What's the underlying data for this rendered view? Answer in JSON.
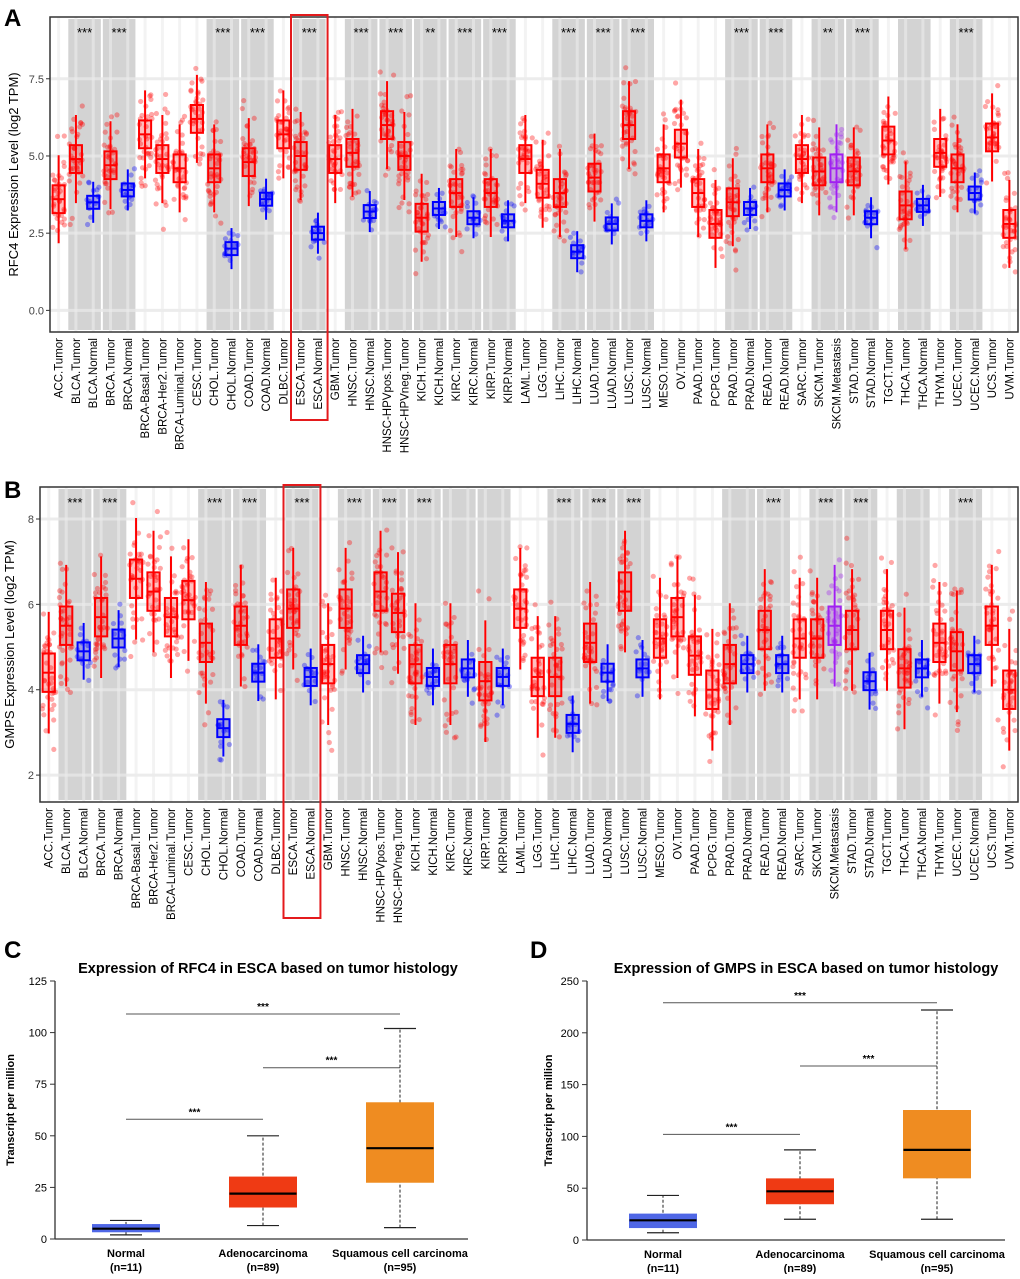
{
  "panel_letters": {
    "a": "A",
    "b": "B",
    "c": "C",
    "d": "D"
  },
  "chart_data": [
    {
      "id": "A",
      "type": "box",
      "ylabel": "RFC4 Expression Level (log2 TPM)",
      "yticks": [
        "0.0",
        "2.5",
        "5.0",
        "7.5"
      ],
      "ytick_values": [
        0,
        2.5,
        5,
        7.5
      ],
      "ylim": [
        -0.7,
        9.5
      ],
      "highlight": "ESCA",
      "categories": [
        "ACC.Tumor",
        "BLCA.Tumor",
        "BLCA.Normal",
        "BRCA.Tumor",
        "BRCA.Normal",
        "BRCA-Basal.Tumor",
        "BRCA-Her2.Tumor",
        "BRCA-Luminal.Tumor",
        "CESC.Tumor",
        "CHOL.Tumor",
        "CHOL.Normal",
        "COAD.Tumor",
        "COAD.Normal",
        "DLBC.Tumor",
        "ESCA.Tumor",
        "ESCA.Normal",
        "GBM.Tumor",
        "HNSC.Tumor",
        "HNSC.Normal",
        "HNSC-HPVpos.Tumor",
        "HNSC-HPVneg.Tumor",
        "KICH.Tumor",
        "KICH.Normal",
        "KIRC.Tumor",
        "KIRC.Normal",
        "KIRP.Tumor",
        "KIRP.Normal",
        "LAML.Tumor",
        "LGG.Tumor",
        "LIHC.Tumor",
        "LIHC.Normal",
        "LUAD.Tumor",
        "LUAD.Normal",
        "LUSC.Tumor",
        "LUSC.Normal",
        "MESO.Tumor",
        "OV.Tumor",
        "PAAD.Tumor",
        "PCPG.Tumor",
        "PRAD.Tumor",
        "PRAD.Normal",
        "READ.Tumor",
        "READ.Normal",
        "SARC.Tumor",
        "SKCM.Tumor",
        "SKCM.Metastasis",
        "STAD.Tumor",
        "STAD.Normal",
        "TGCT.Tumor",
        "THCA.Tumor",
        "THCA.Normal",
        "THYM.Tumor",
        "UCEC.Tumor",
        "UCEC.Normal",
        "UCS.Tumor",
        "UVM.Tumor"
      ],
      "medians": [
        3.6,
        4.9,
        3.5,
        4.7,
        3.9,
        5.7,
        4.9,
        4.6,
        6.2,
        4.6,
        2.0,
        4.8,
        3.6,
        5.7,
        5.0,
        2.5,
        4.9,
        5.1,
        3.2,
        6.0,
        5.0,
        3.0,
        3.3,
        3.8,
        3.0,
        3.8,
        2.9,
        4.9,
        4.1,
        3.8,
        1.9,
        4.3,
        2.8,
        6.0,
        2.9,
        4.6,
        5.4,
        3.8,
        2.8,
        3.5,
        3.3,
        4.6,
        3.9,
        4.9,
        4.5,
        4.6,
        4.5,
        3.0,
        5.5,
        3.4,
        3.4,
        5.1,
        4.6,
        3.8,
        5.6,
        2.8
      ],
      "significance_bands": [
        {
          "index": 1,
          "stars": "***"
        },
        {
          "index": 3,
          "stars": "***"
        },
        {
          "index": 9,
          "stars": "***"
        },
        {
          "index": 11,
          "stars": "***"
        },
        {
          "index": 14,
          "stars": "***"
        },
        {
          "index": 17,
          "stars": "***"
        },
        {
          "index": 19,
          "stars": "***"
        },
        {
          "index": 21,
          "stars": "**"
        },
        {
          "index": 23,
          "stars": "***"
        },
        {
          "index": 25,
          "stars": "***"
        },
        {
          "index": 29,
          "stars": "***"
        },
        {
          "index": 31,
          "stars": "***"
        },
        {
          "index": 33,
          "stars": "***"
        },
        {
          "index": 39,
          "stars": "***"
        },
        {
          "index": 41,
          "stars": "***"
        },
        {
          "index": 44,
          "stars": "**"
        },
        {
          "index": 46,
          "stars": "***"
        },
        {
          "index": 49,
          "stars": ""
        },
        {
          "index": 52,
          "stars": "***"
        }
      ]
    },
    {
      "id": "B",
      "type": "box",
      "ylabel": "GMPS Expression Level (log2 TPM)",
      "yticks": [
        "2",
        "4",
        "6",
        "8"
      ],
      "ytick_values": [
        2,
        4,
        6,
        8
      ],
      "ylim": [
        1.37,
        8.75
      ],
      "highlight": "ESCA",
      "categories": [
        "ACC.Tumor",
        "BLCA.Tumor",
        "BLCA.Normal",
        "BRCA.Tumor",
        "BRCA.Normal",
        "BRCA-Basal.Tumor",
        "BRCA-Her2.Tumor",
        "BRCA-Luminal.Tumor",
        "CESC.Tumor",
        "CHOL.Tumor",
        "CHOL.Normal",
        "COAD.Tumor",
        "COAD.Normal",
        "DLBC.Tumor",
        "ESCA.Tumor",
        "ESCA.Normal",
        "GBM.Tumor",
        "HNSC.Tumor",
        "HNSC.Normal",
        "HNSC-HPVpos.Tumor",
        "HNSC-HPVneg.Tumor",
        "KICH.Tumor",
        "KICH.Normal",
        "KIRC.Tumor",
        "KIRC.Normal",
        "KIRP.Tumor",
        "KIRP.Normal",
        "LAML.Tumor",
        "LGG.Tumor",
        "LIHC.Tumor",
        "LIHC.Normal",
        "LUAD.Tumor",
        "LUAD.Normal",
        "LUSC.Tumor",
        "LUSC.Normal",
        "MESO.Tumor",
        "OV.Tumor",
        "PAAD.Tumor",
        "PCPG.Tumor",
        "PRAD.Tumor",
        "PRAD.Normal",
        "READ.Tumor",
        "READ.Normal",
        "SARC.Tumor",
        "SKCM.Tumor",
        "SKCM.Metastasis",
        "STAD.Tumor",
        "STAD.Normal",
        "TGCT.Tumor",
        "THCA.Tumor",
        "THCA.Normal",
        "THYM.Tumor",
        "UCEC.Tumor",
        "UCEC.Normal",
        "UCS.Tumor",
        "UVM.Tumor"
      ],
      "medians": [
        4.4,
        5.5,
        4.9,
        5.7,
        5.2,
        6.6,
        6.3,
        5.7,
        6.1,
        5.1,
        3.1,
        5.5,
        4.4,
        5.2,
        5.9,
        4.3,
        4.6,
        5.9,
        4.6,
        6.3,
        5.8,
        4.6,
        4.3,
        4.6,
        4.5,
        4.2,
        4.3,
        5.9,
        4.3,
        4.3,
        3.2,
        5.1,
        4.4,
        6.3,
        4.5,
        5.2,
        5.7,
        4.8,
        4.0,
        4.6,
        4.6,
        5.4,
        4.6,
        5.2,
        5.2,
        5.5,
        5.4,
        4.2,
        5.4,
        4.5,
        4.5,
        5.1,
        4.9,
        4.6,
        5.5,
        4.0
      ],
      "significance_bands": [
        {
          "index": 1,
          "stars": "***"
        },
        {
          "index": 3,
          "stars": "***"
        },
        {
          "index": 9,
          "stars": "***"
        },
        {
          "index": 11,
          "stars": "***"
        },
        {
          "index": 14,
          "stars": "***"
        },
        {
          "index": 17,
          "stars": "***"
        },
        {
          "index": 19,
          "stars": "***"
        },
        {
          "index": 21,
          "stars": "***"
        },
        {
          "index": 23,
          "stars": ""
        },
        {
          "index": 25,
          "stars": ""
        },
        {
          "index": 29,
          "stars": "***"
        },
        {
          "index": 31,
          "stars": "***"
        },
        {
          "index": 33,
          "stars": "***"
        },
        {
          "index": 39,
          "stars": ""
        },
        {
          "index": 41,
          "stars": "***"
        },
        {
          "index": 44,
          "stars": "***"
        },
        {
          "index": 46,
          "stars": "***"
        },
        {
          "index": 49,
          "stars": ""
        },
        {
          "index": 52,
          "stars": "***"
        }
      ]
    },
    {
      "id": "C",
      "type": "box",
      "title": "Expression of RFC4 in ESCA based on tumor histology",
      "ylabel": "Transcript per million",
      "yticks": [
        "0",
        "25",
        "50",
        "75",
        "100",
        "125"
      ],
      "ytick_values": [
        0,
        25,
        50,
        75,
        100,
        125
      ],
      "ylim": [
        0,
        125
      ],
      "categories": [
        "Normal",
        "Adenocarcinoma",
        "Squamous cell carcinoma"
      ],
      "n_labels": [
        "(n=11)",
        "(n=89)",
        "(n=95)"
      ],
      "colors": [
        "#4f67e6",
        "#ef3a14",
        "#ef8c21"
      ],
      "boxes": [
        {
          "min": 2,
          "q1": 3.5,
          "median": 5,
          "q3": 7,
          "max": 9
        },
        {
          "min": 6.5,
          "q1": 15.5,
          "median": 22,
          "q3": 30,
          "max": 50
        },
        {
          "min": 5.5,
          "q1": 27.5,
          "median": 44,
          "q3": 66,
          "max": 102
        }
      ],
      "comparisons": [
        {
          "from": 0,
          "to": 1,
          "y": 58,
          "stars": "***"
        },
        {
          "from": 1,
          "to": 2,
          "y": 83,
          "stars": "***"
        },
        {
          "from": 0,
          "to": 2,
          "y": 109,
          "stars": "***"
        }
      ]
    },
    {
      "id": "D",
      "type": "box",
      "title": "Expression of GMPS in ESCA based on tumor histology",
      "ylabel": "Transcript per million",
      "yticks": [
        "0",
        "50",
        "100",
        "150",
        "200",
        "250"
      ],
      "ytick_values": [
        0,
        50,
        100,
        150,
        200,
        250
      ],
      "ylim": [
        0,
        250
      ],
      "categories": [
        "Normal",
        "Adenocarcinoma",
        "Squamous cell carcinoma"
      ],
      "n_labels": [
        "(n=11)",
        "(n=89)",
        "(n=95)"
      ],
      "colors": [
        "#4f67e6",
        "#ef3a14",
        "#ef8c21"
      ],
      "boxes": [
        {
          "min": 7,
          "q1": 12,
          "median": 19,
          "q3": 25,
          "max": 43
        },
        {
          "min": 20,
          "q1": 35,
          "median": 47,
          "q3": 59,
          "max": 87
        },
        {
          "min": 20,
          "q1": 60,
          "median": 87,
          "q3": 125,
          "max": 222
        }
      ],
      "comparisons": [
        {
          "from": 0,
          "to": 1,
          "y": 102,
          "stars": "***"
        },
        {
          "from": 1,
          "to": 2,
          "y": 168,
          "stars": "***"
        },
        {
          "from": 0,
          "to": 2,
          "y": 229,
          "stars": "***"
        }
      ]
    }
  ],
  "colors": {
    "tumor": "#ff0000",
    "normal": "#0000ff",
    "metastasis": "#a020f0",
    "band": "#d3d3d3",
    "highlight": "#e41a1c"
  }
}
